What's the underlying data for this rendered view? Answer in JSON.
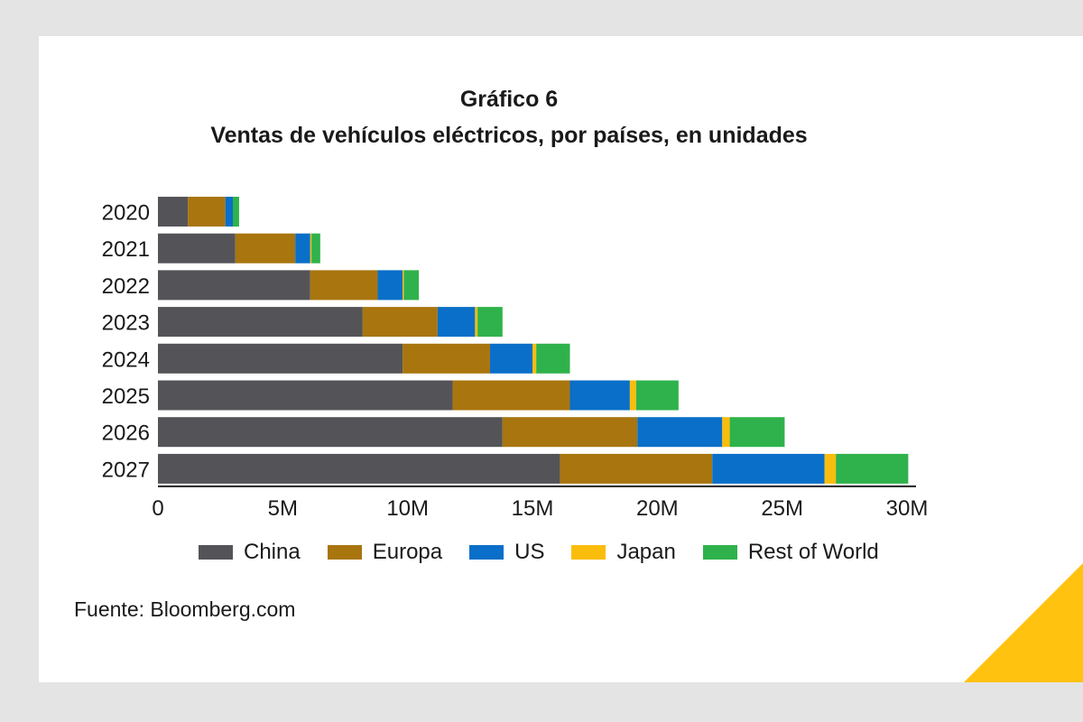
{
  "title": "Gráfico 6",
  "subtitle": "Ventas de vehículos eléctricos, por países, en unidades",
  "source": "Fuente: Bloomberg.com",
  "colors": {
    "China": "#545458",
    "Europa": "#a8750f",
    "US": "#0a6fc8",
    "Japan": "#fbbd0b",
    "Rest of World": "#2fb24b",
    "accent": "#ffc20e"
  },
  "chart_data": {
    "type": "bar",
    "orientation": "horizontal",
    "stacked": true,
    "title": "Gráfico 6",
    "subtitle": "Ventas de vehículos eléctricos, por países, en unidades",
    "categories": [
      "2020",
      "2021",
      "2022",
      "2023",
      "2024",
      "2025",
      "2026",
      "2027"
    ],
    "series": [
      {
        "name": "China",
        "values": [
          1.2,
          3.1,
          6.1,
          8.2,
          9.8,
          11.8,
          13.8,
          16.1
        ]
      },
      {
        "name": "Europa",
        "values": [
          1.5,
          2.4,
          2.7,
          3.0,
          3.5,
          4.7,
          5.4,
          6.1
        ]
      },
      {
        "name": "US",
        "values": [
          0.3,
          0.6,
          1.0,
          1.5,
          1.7,
          2.4,
          3.4,
          4.5
        ]
      },
      {
        "name": "Japan",
        "values": [
          0.0,
          0.05,
          0.05,
          0.1,
          0.15,
          0.25,
          0.3,
          0.45
        ]
      },
      {
        "name": "Rest of World",
        "values": [
          0.25,
          0.35,
          0.6,
          1.0,
          1.35,
          1.7,
          2.2,
          2.9
        ]
      }
    ],
    "xlim": [
      0,
      30
    ],
    "xticks": [
      "0",
      "5M",
      "10M",
      "15M",
      "20M",
      "25M",
      "30M"
    ],
    "xlabel": "",
    "ylabel": "",
    "grid": false,
    "legend_position": "bottom"
  }
}
